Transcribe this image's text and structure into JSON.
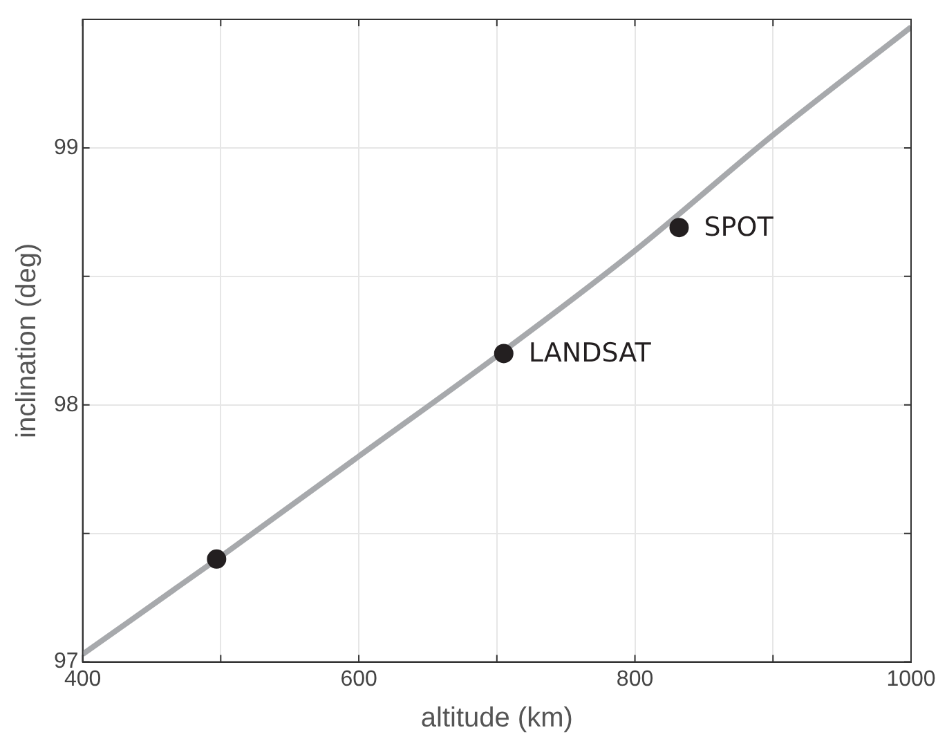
{
  "chart_data": {
    "type": "line",
    "xlabel": "altitude (km)",
    "ylabel": "inclination (deg)",
    "xlim": [
      400,
      1000
    ],
    "ylim": [
      97,
      99.5
    ],
    "xticks": [
      400,
      {
        "value": 500,
        "label": null
      },
      600,
      {
        "value": 700,
        "label": null
      },
      800,
      {
        "value": 900,
        "label": null
      },
      1000
    ],
    "yticks": [
      97,
      {
        "value": 97.5,
        "label": null
      },
      98,
      {
        "value": 98.5,
        "label": null
      },
      99
    ],
    "grid": true,
    "legend": false,
    "series": [
      {
        "color": "#a7a9ac",
        "marker": "none",
        "line_style": "solid",
        "x": [
          400,
          500,
          600,
          700,
          800,
          900,
          1000
        ],
        "values": [
          97.03,
          97.41,
          97.8,
          98.19,
          98.6,
          99.05,
          99.47
        ]
      },
      {
        "type": "scatter",
        "color": "#231f20",
        "marker": "circle",
        "x": [
          497,
          705,
          832
        ],
        "values": [
          97.4,
          98.2,
          98.69
        ]
      }
    ],
    "annotations": [
      {
        "text": "LANDSAT",
        "x": 705,
        "y": 98.2
      },
      {
        "text": "SPOT",
        "x": 832,
        "y": 98.69
      }
    ]
  }
}
